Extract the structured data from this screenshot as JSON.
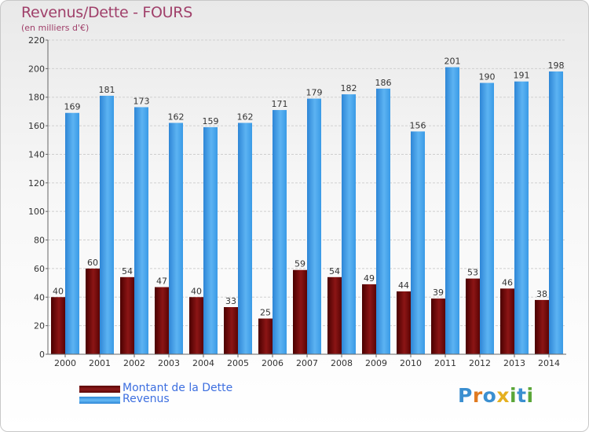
{
  "title": "Revenus/Dette - FOURS",
  "subtitle": "(en milliers d'€)",
  "colors": {
    "debt": "#7a0a0a",
    "revenue": "#3a9ae6",
    "title": "#a0406a",
    "legend_text": "#3d6fe0"
  },
  "legend": {
    "debt_label": "Montant de la Dette",
    "revenue_label": "Revenus"
  },
  "logo": {
    "letters": [
      "P",
      "r",
      "o",
      "x",
      "i",
      "t",
      "i"
    ],
    "colors": [
      "#3b8fd0",
      "#e07a20",
      "#3b8fd0",
      "#e5b020",
      "#5aa638",
      "#3b8fd0",
      "#5aa638"
    ]
  },
  "chart_data": {
    "type": "bar",
    "categories": [
      "2000",
      "2001",
      "2002",
      "2003",
      "2004",
      "2005",
      "2006",
      "2007",
      "2008",
      "2009",
      "2010",
      "2011",
      "2012",
      "2013",
      "2014"
    ],
    "series": [
      {
        "name": "Montant de la Dette",
        "values": [
          40,
          60,
          54,
          47,
          40,
          33,
          25,
          59,
          54,
          49,
          44,
          39,
          53,
          46,
          38
        ]
      },
      {
        "name": "Revenus",
        "values": [
          169,
          181,
          173,
          162,
          159,
          162,
          171,
          179,
          182,
          186,
          156,
          201,
          190,
          191,
          198
        ]
      }
    ],
    "ylim": [
      0,
      220
    ],
    "yticks": [
      0,
      20,
      40,
      60,
      80,
      100,
      120,
      140,
      160,
      180,
      200,
      220
    ],
    "grid": true,
    "legend_position": "bottom-left"
  }
}
